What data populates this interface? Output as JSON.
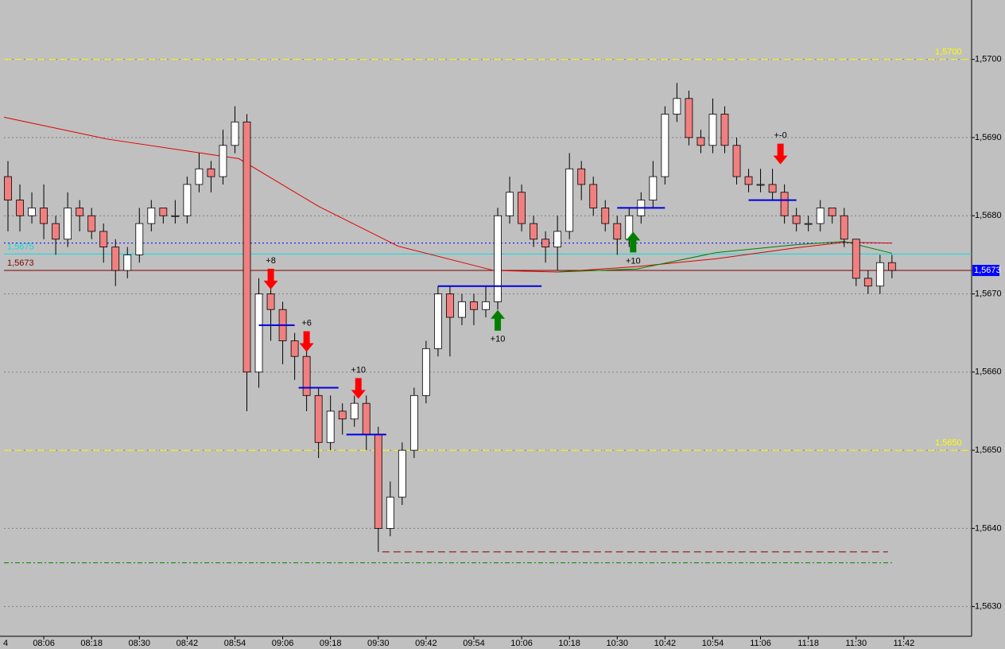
{
  "chart_data": {
    "type": "candlestick",
    "x_axis_edge_label": "4",
    "xlim": [
      "07:56",
      "11:59"
    ],
    "ylim": [
      1.56262,
      1.57076
    ],
    "grid": true,
    "background": "#c0c0c0",
    "bull_color": "#ffffff",
    "bear_color": "#f08080",
    "xticks": [
      "08:06",
      "08:18",
      "08:30",
      "08:42",
      "08:54",
      "09:06",
      "09:18",
      "09:30",
      "09:42",
      "09:54",
      "10:06",
      "10:18",
      "10:30",
      "10:42",
      "10:54",
      "11:06",
      "11:18",
      "11:30",
      "11:42"
    ],
    "yticks": [
      {
        "value": 1.563,
        "label": "1,5630"
      },
      {
        "value": 1.564,
        "label": "1,5640"
      },
      {
        "value": 1.565,
        "label": "1,5650"
      },
      {
        "value": 1.566,
        "label": "1,5660"
      },
      {
        "value": 1.567,
        "label": "1,5670"
      },
      {
        "value": 1.568,
        "label": "1,5680"
      },
      {
        "value": 1.569,
        "label": "1,5690"
      },
      {
        "value": 1.57,
        "label": "1,5700"
      }
    ],
    "last_price": {
      "value": 1.5673,
      "label": "1,5673",
      "color": "#0000ff"
    },
    "candles": {
      "x": [
        "07:57",
        "08:00",
        "08:03",
        "08:06",
        "08:09",
        "08:12",
        "08:15",
        "08:18",
        "08:21",
        "08:24",
        "08:27",
        "08:30",
        "08:33",
        "08:36",
        "08:39",
        "08:42",
        "08:45",
        "08:48",
        "08:51",
        "08:54",
        "08:57",
        "09:00",
        "09:03",
        "09:06",
        "09:09",
        "09:12",
        "09:15",
        "09:18",
        "09:21",
        "09:24",
        "09:27",
        "09:30",
        "09:33",
        "09:36",
        "09:39",
        "09:42",
        "09:45",
        "09:48",
        "09:51",
        "09:54",
        "09:57",
        "10:00",
        "10:03",
        "10:06",
        "10:09",
        "10:12",
        "10:15",
        "10:18",
        "10:21",
        "10:24",
        "10:27",
        "10:30",
        "10:33",
        "10:36",
        "10:39",
        "10:42",
        "10:45",
        "10:48",
        "10:51",
        "10:54",
        "10:57",
        "11:00",
        "11:03",
        "11:06",
        "11:09",
        "11:12",
        "11:15",
        "11:18",
        "11:21",
        "11:24",
        "11:27",
        "11:30",
        "11:33",
        "11:36",
        "11:39"
      ],
      "open": [
        1.5685,
        1.5682,
        1.568,
        1.5681,
        1.5679,
        1.5677,
        1.5681,
        1.568,
        1.5678,
        1.5676,
        1.5673,
        1.5675,
        1.5679,
        1.5681,
        1.568,
        1.568,
        1.5684,
        1.5686,
        1.5685,
        1.5689,
        1.5692,
        1.566,
        1.567,
        1.5668,
        1.5664,
        1.5662,
        1.5657,
        1.5651,
        1.5655,
        1.5654,
        1.5656,
        1.5652,
        1.564,
        1.5644,
        1.565,
        1.5657,
        1.5663,
        1.567,
        1.5667,
        1.5669,
        1.5668,
        1.5669,
        1.568,
        1.5683,
        1.5679,
        1.5677,
        1.5676,
        1.5678,
        1.5686,
        1.5684,
        1.5681,
        1.5679,
        1.5677,
        1.568,
        1.5682,
        1.5685,
        1.5693,
        1.5695,
        1.569,
        1.5689,
        1.5693,
        1.5689,
        1.5685,
        1.5684,
        1.5684,
        1.5683,
        1.568,
        1.5679,
        1.5679,
        1.5681,
        1.568,
        1.5677,
        1.5672,
        1.5671,
        1.5674
      ],
      "high": [
        1.5687,
        1.5684,
        1.5683,
        1.5684,
        1.568,
        1.5683,
        1.5682,
        1.5681,
        1.5679,
        1.5677,
        1.5676,
        1.5681,
        1.5682,
        1.5681,
        1.5682,
        1.5685,
        1.5688,
        1.5687,
        1.5691,
        1.5694,
        1.5693,
        1.5672,
        1.5671,
        1.5669,
        1.5665,
        1.5663,
        1.5658,
        1.5657,
        1.5656,
        1.5657,
        1.5657,
        1.5653,
        1.5646,
        1.5651,
        1.5658,
        1.5664,
        1.5671,
        1.5671,
        1.567,
        1.567,
        1.5671,
        1.5681,
        1.5685,
        1.5684,
        1.568,
        1.5678,
        1.568,
        1.5688,
        1.5687,
        1.5685,
        1.5682,
        1.568,
        1.5681,
        1.5683,
        1.5687,
        1.5694,
        1.5697,
        1.5696,
        1.5691,
        1.5695,
        1.5694,
        1.569,
        1.5686,
        1.5686,
        1.5686,
        1.5684,
        1.5681,
        1.568,
        1.5682,
        1.5681,
        1.5681,
        1.5677,
        1.5673,
        1.5675,
        1.5675
      ],
      "low": [
        1.5678,
        1.5678,
        1.5679,
        1.5677,
        1.5675,
        1.5676,
        1.5678,
        1.5677,
        1.5674,
        1.5671,
        1.5672,
        1.5674,
        1.5678,
        1.5679,
        1.5679,
        1.5679,
        1.5683,
        1.5683,
        1.5684,
        1.5688,
        1.5655,
        1.5658,
        1.5664,
        1.5661,
        1.5659,
        1.5655,
        1.5649,
        1.565,
        1.5652,
        1.5653,
        1.565,
        1.5637,
        1.5639,
        1.5643,
        1.5649,
        1.5656,
        1.5662,
        1.5662,
        1.5666,
        1.5666,
        1.5667,
        1.5668,
        1.5679,
        1.5678,
        1.5676,
        1.5674,
        1.5673,
        1.5677,
        1.5682,
        1.568,
        1.5678,
        1.5675,
        1.5676,
        1.5679,
        1.5681,
        1.5684,
        1.5692,
        1.5689,
        1.5688,
        1.5688,
        1.5688,
        1.5684,
        1.5683,
        1.5683,
        1.5682,
        1.5679,
        1.5678,
        1.5678,
        1.5678,
        1.5679,
        1.5676,
        1.5671,
        1.567,
        1.567,
        1.5672
      ],
      "close": [
        1.5682,
        1.568,
        1.5681,
        1.5679,
        1.5677,
        1.5681,
        1.568,
        1.5678,
        1.5676,
        1.5673,
        1.5675,
        1.5679,
        1.5681,
        1.568,
        1.568,
        1.5684,
        1.5686,
        1.5685,
        1.5689,
        1.5692,
        1.566,
        1.567,
        1.5668,
        1.5664,
        1.5662,
        1.5657,
        1.5651,
        1.5655,
        1.5654,
        1.5656,
        1.5652,
        1.564,
        1.5644,
        1.565,
        1.5657,
        1.5663,
        1.567,
        1.5667,
        1.5669,
        1.5668,
        1.5669,
        1.568,
        1.5683,
        1.5679,
        1.5677,
        1.5676,
        1.5678,
        1.5686,
        1.5684,
        1.5681,
        1.5679,
        1.5677,
        1.568,
        1.5682,
        1.5685,
        1.5693,
        1.5695,
        1.569,
        1.5689,
        1.5693,
        1.5689,
        1.5685,
        1.5684,
        1.5684,
        1.5683,
        1.568,
        1.5679,
        1.5679,
        1.5681,
        1.568,
        1.5677,
        1.5672,
        1.5671,
        1.5674,
        1.5673
      ]
    },
    "lines": [
      {
        "color": "#e00000",
        "x": [
          "07:56",
          "08:22",
          "08:55",
          "09:15",
          "09:35",
          "09:59",
          "10:15",
          "10:35",
          "10:55",
          "11:15",
          "11:27",
          "11:39"
        ],
        "values": [
          1.56926,
          1.56898,
          1.56873,
          1.56812,
          1.56761,
          1.5673,
          1.56728,
          1.56735,
          1.56745,
          1.56759,
          1.56766,
          1.56765
        ]
      },
      {
        "color": "#008000",
        "x": [
          "10:15",
          "10:35",
          "10:55",
          "11:15",
          "11:27",
          "11:39"
        ],
        "values": [
          1.56728,
          1.56732,
          1.56753,
          1.56763,
          1.56767,
          1.56752
        ]
      }
    ],
    "levels": [
      {
        "value": 1.57,
        "label": "1,5700",
        "label_side": "right",
        "color": "#ffff00",
        "style": "dashed",
        "start": "07:56",
        "end": "11:59"
      },
      {
        "value": 1.565,
        "label": "1,5650",
        "label_side": "right",
        "color": "#ffff00",
        "style": "dashed",
        "start": "07:56",
        "end": "11:59"
      },
      {
        "value": 1.56765,
        "color": "#0000ff",
        "style": "dotted",
        "start": "07:56",
        "end": "11:39"
      },
      {
        "value": 1.56751,
        "label": "1,5675",
        "label_side": "left",
        "color": "#00e0e0",
        "style": "solid",
        "start": "07:56",
        "end": "11:59"
      },
      {
        "value": 1.5673,
        "label": "1,5673",
        "label_side": "left",
        "color": "#800000",
        "style": "solid",
        "start": "07:56",
        "end": "11:59"
      },
      {
        "value": 1.56356,
        "color": "#008000",
        "style": "dashdot",
        "start": "07:56",
        "end": "11:39"
      },
      {
        "value": 1.5637,
        "color": "#800000",
        "style": "dashed",
        "start": "09:31",
        "end": "11:38"
      }
    ],
    "signals": [
      {
        "direction": "down",
        "time": "09:03",
        "start": "09:00",
        "end": "09:09",
        "level": 1.5666,
        "label": "+8"
      },
      {
        "direction": "down",
        "time": "09:12",
        "start": "09:10",
        "end": "09:20",
        "level": 1.5658,
        "label": "+6"
      },
      {
        "direction": "down",
        "time": "09:25",
        "start": "09:22",
        "end": "09:32",
        "level": 1.5652,
        "label": "+10"
      },
      {
        "direction": "up",
        "time": "10:00",
        "start": "09:45",
        "end": "10:11",
        "level": 1.5671,
        "label": "+10"
      },
      {
        "direction": "up",
        "time": "10:34",
        "start": "10:30",
        "end": "10:42",
        "level": 1.5681,
        "label": "+10"
      },
      {
        "direction": "down",
        "time": "11:11",
        "start": "11:03",
        "end": "11:15",
        "level": 1.5682,
        "label": "+-0"
      }
    ]
  }
}
